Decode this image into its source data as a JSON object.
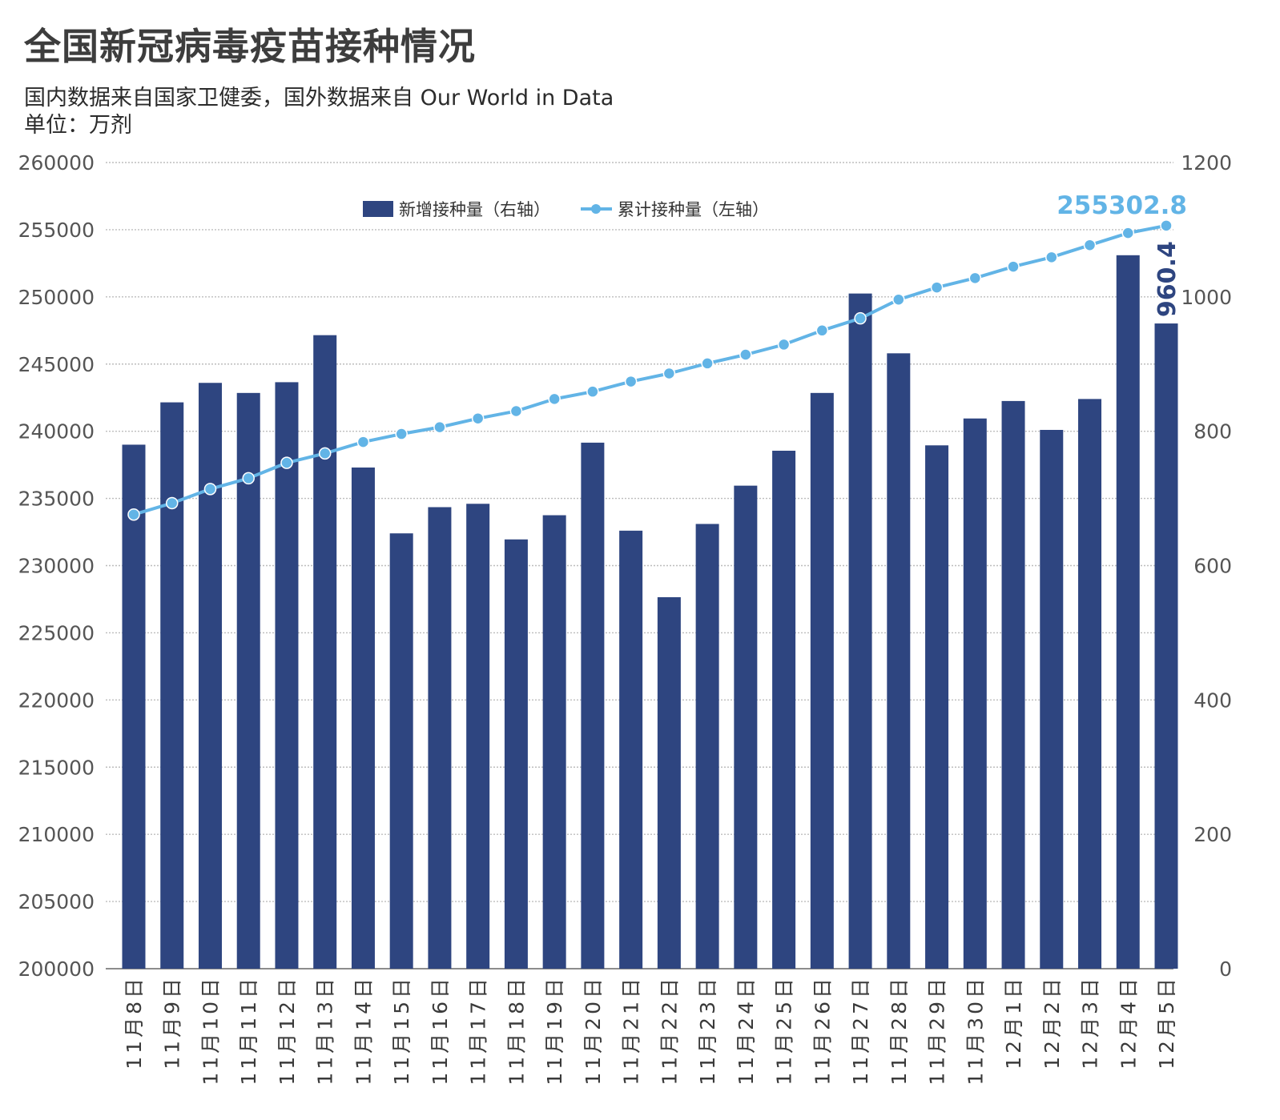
{
  "title": "全国新冠病毒疫苗接种情况",
  "subtitle": "国内数据来自国家卫健委，国外数据来自 Our World in Data",
  "unit": "单位：万剂",
  "colors": {
    "bar": "#2e4580",
    "line": "#62b4e6",
    "grid": "#bdbdbd",
    "axis": "#555555"
  },
  "chart_data": {
    "type": "bar+line",
    "categories": [
      "11月8日",
      "11月9日",
      "11月10日",
      "11月11日",
      "11月12日",
      "11月13日",
      "11月14日",
      "11月15日",
      "11月16日",
      "11月17日",
      "11月18日",
      "11月19日",
      "11月20日",
      "11月21日",
      "11月22日",
      "11月23日",
      "11月24日",
      "11月25日",
      "11月26日",
      "11月27日",
      "11月28日",
      "11月29日",
      "11月30日",
      "12月1日",
      "12月2日",
      "12月3日",
      "12月4日",
      "12月5日"
    ],
    "series": [
      {
        "name": "新增接种量（右轴）",
        "type": "bar",
        "axis": "right",
        "values": [
          780,
          843,
          872,
          857,
          873,
          943,
          746,
          648,
          687,
          692,
          639,
          675,
          783,
          652,
          553,
          662,
          719,
          771,
          857,
          1005,
          916,
          779,
          819,
          845,
          802,
          848,
          1062,
          960.4
        ]
      },
      {
        "name": "累计接种量（左轴）",
        "type": "line",
        "axis": "left",
        "values": [
          233800,
          234650,
          235700,
          236500,
          237650,
          238350,
          239200,
          239800,
          240300,
          240950,
          241500,
          242400,
          242950,
          243700,
          244300,
          245050,
          245700,
          246450,
          247500,
          248400,
          249800,
          250700,
          251400,
          252250,
          252950,
          253850,
          254750,
          255302.8
        ]
      }
    ],
    "y_left": {
      "min": 200000,
      "max": 260000,
      "ticks": [
        200000,
        205000,
        210000,
        215000,
        220000,
        225000,
        230000,
        235000,
        240000,
        245000,
        250000,
        255000,
        260000
      ]
    },
    "y_right": {
      "min": 0,
      "max": 1200,
      "ticks": [
        0,
        200,
        400,
        600,
        800,
        1000,
        1200
      ]
    },
    "annotations": {
      "line_last": "255302.8",
      "bar_last": "960.4"
    },
    "grid": true,
    "legend_position": "top-center"
  }
}
